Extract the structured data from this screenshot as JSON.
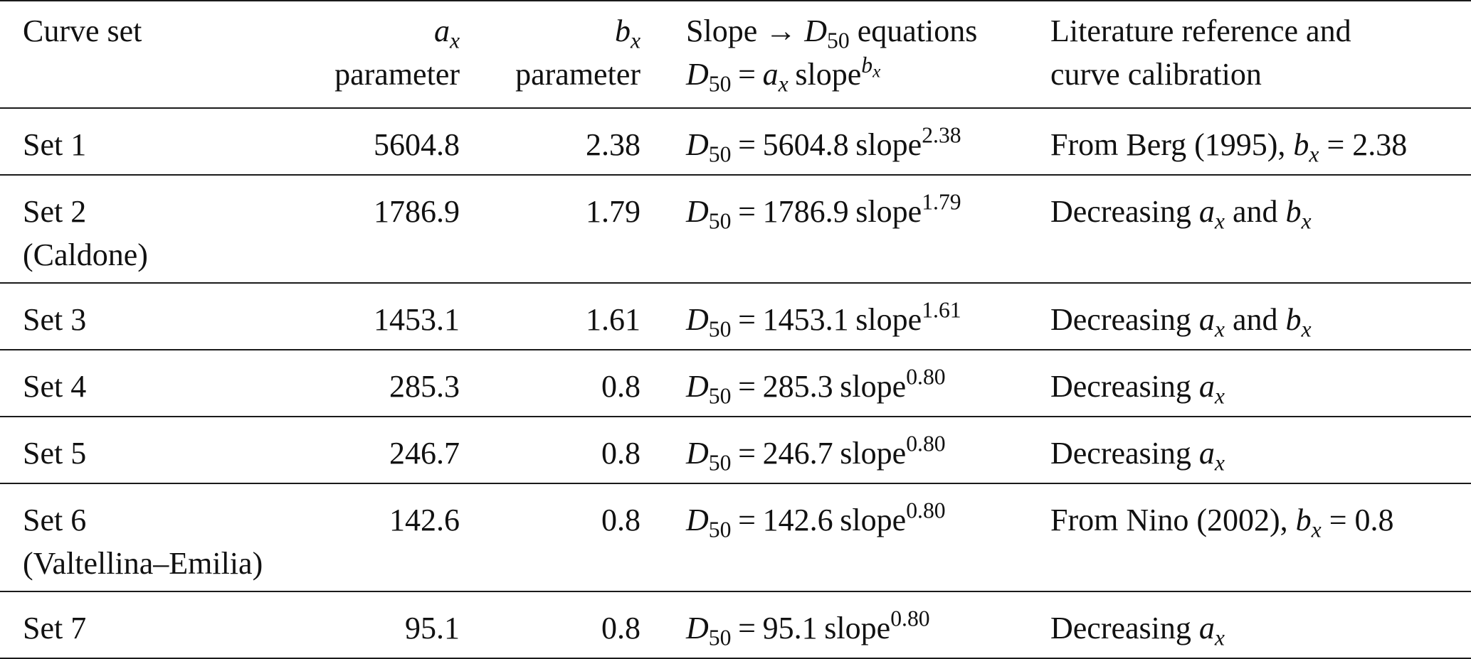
{
  "header": {
    "col1": "Curve set",
    "col2": {
      "var": "a",
      "sub": "x",
      "line2": "parameter"
    },
    "col3": {
      "var": "b",
      "sub": "x",
      "line2": "parameter"
    },
    "col4": {
      "line1_pre": "Slope → ",
      "line1_var": "D",
      "line1_sub": "50",
      "line1_post": " equations",
      "eq_lhs": "D",
      "eq_lhs_sub": "50",
      "eq_op": "=",
      "eq_a": "a",
      "eq_a_sub": "x",
      "eq_word": "slope",
      "eq_exp": "b",
      "eq_exp_sub": "x"
    },
    "col5": {
      "line1": "Literature reference and",
      "line2": "curve calibration"
    }
  },
  "rows": [
    {
      "set": "Set 1",
      "set2": "",
      "ax": "5604.8",
      "bx": "2.38",
      "eq_coef": "5604.8",
      "eq_exp": "2.38",
      "ref": "From Berg (1995), ",
      "ref_var": "b",
      "ref_sub": "x",
      "ref_tail": " = 2.38"
    },
    {
      "set": "Set 2",
      "set2": "(Caldone)",
      "ax": "1786.9",
      "bx": "1.79",
      "eq_coef": "1786.9",
      "eq_exp": "1.79",
      "ref": "Decreasing ",
      "ref_var": "a",
      "ref_sub": "x",
      "ref_tail": " and ",
      "ref_var2": "b",
      "ref_sub2": "x"
    },
    {
      "set": "Set 3",
      "set2": "",
      "ax": "1453.1",
      "bx": "1.61",
      "eq_coef": "1453.1",
      "eq_exp": "1.61",
      "ref": "Decreasing ",
      "ref_var": "a",
      "ref_sub": "x",
      "ref_tail": " and ",
      "ref_var2": "b",
      "ref_sub2": "x"
    },
    {
      "set": "Set 4",
      "set2": "",
      "ax": "285.3",
      "bx": "0.8",
      "eq_coef": "285.3",
      "eq_exp": "0.80",
      "ref": "Decreasing ",
      "ref_var": "a",
      "ref_sub": "x",
      "ref_tail": ""
    },
    {
      "set": "Set 5",
      "set2": "",
      "ax": "246.7",
      "bx": "0.8",
      "eq_coef": "246.7",
      "eq_exp": "0.80",
      "ref": "Decreasing ",
      "ref_var": "a",
      "ref_sub": "x",
      "ref_tail": ""
    },
    {
      "set": "Set 6",
      "set2": "(Valtellina–Emilia)",
      "ax": "142.6",
      "bx": "0.8",
      "eq_coef": "142.6",
      "eq_exp": "0.80",
      "ref": "From Nino (2002), ",
      "ref_var": "b",
      "ref_sub": "x",
      "ref_tail": " = 0.8"
    },
    {
      "set": "Set 7",
      "set2": "",
      "ax": "95.1",
      "bx": "0.8",
      "eq_coef": "95.1",
      "eq_exp": "0.80",
      "ref": "Decreasing ",
      "ref_var": "a",
      "ref_sub": "x",
      "ref_tail": ""
    }
  ]
}
